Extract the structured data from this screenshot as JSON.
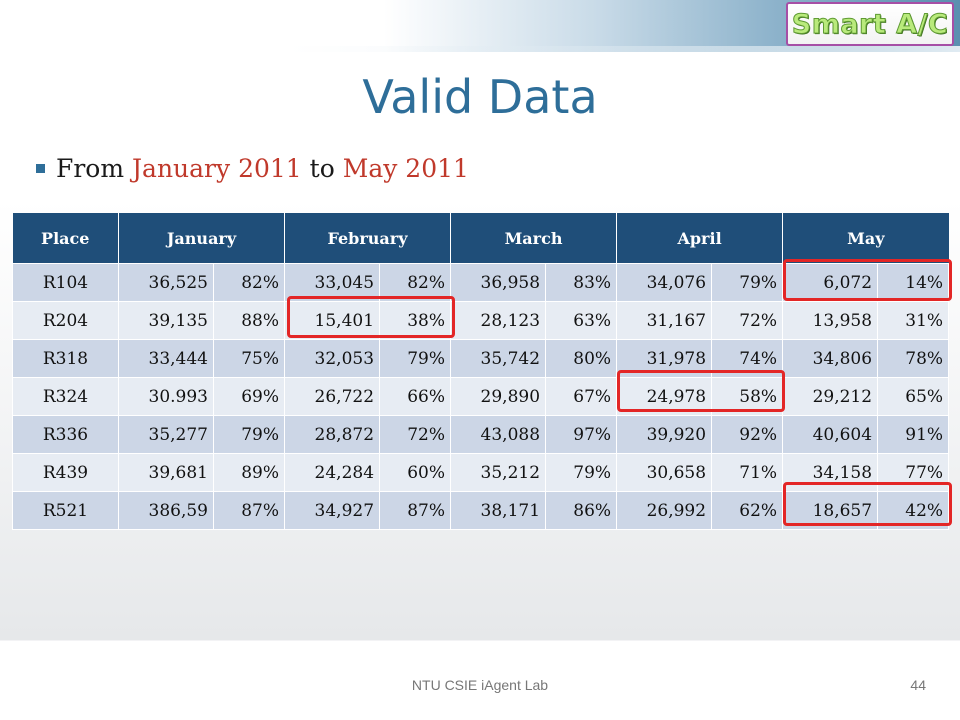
{
  "logo": {
    "text": "Smart A/C"
  },
  "title": "Valid Data",
  "bullet": {
    "prefix": "From",
    "start": "January 2011",
    "joiner": "to",
    "end": "May 2011"
  },
  "table": {
    "headers": [
      "Place",
      "January",
      "February",
      "March",
      "April",
      "May"
    ],
    "rows": [
      [
        "R104",
        "36,525",
        "82%",
        "33,045",
        "82%",
        "36,958",
        "83%",
        "34,076",
        "79%",
        "6,072",
        "14%"
      ],
      [
        "R204",
        "39,135",
        "88%",
        "15,401",
        "38%",
        "28,123",
        "63%",
        "31,167",
        "72%",
        "13,958",
        "31%"
      ],
      [
        "R318",
        "33,444",
        "75%",
        "32,053",
        "79%",
        "35,742",
        "80%",
        "31,978",
        "74%",
        "34,806",
        "78%"
      ],
      [
        "R324",
        "30.993",
        "69%",
        "26,722",
        "66%",
        "29,890",
        "67%",
        "24,978",
        "58%",
        "29,212",
        "65%"
      ],
      [
        "R336",
        "35,277",
        "79%",
        "28,872",
        "72%",
        "43,088",
        "97%",
        "39,920",
        "92%",
        "40,604",
        "91%"
      ],
      [
        "R439",
        "39,681",
        "89%",
        "24,284",
        "60%",
        "35,212",
        "79%",
        "30,658",
        "71%",
        "34,158",
        "77%"
      ],
      [
        "R521",
        "386,59",
        "87%",
        "34,927",
        "87%",
        "38,171",
        "86%",
        "26,992",
        "62%",
        "18,657",
        "42%"
      ]
    ]
  },
  "footer": {
    "lab": "NTU CSIE iAgent Lab",
    "page": "44"
  },
  "colors": {
    "title": "#2e6e99",
    "highlight": "#c0392b",
    "header_bg": "#1f4e79",
    "box": "#e32626"
  }
}
